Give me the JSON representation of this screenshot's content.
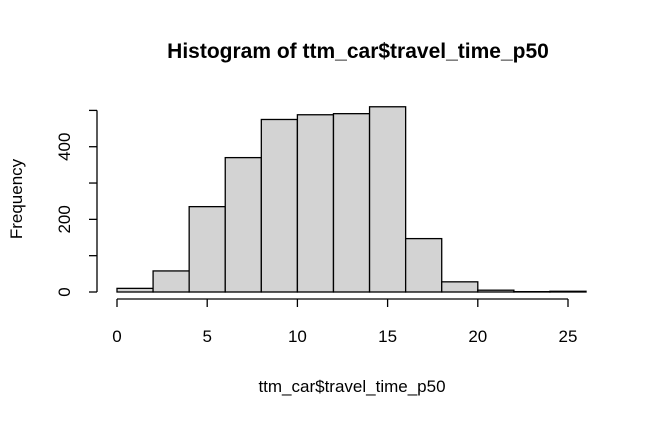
{
  "chart_data": {
    "type": "bar",
    "title": "Histogram of ttm_car$travel_time_p50",
    "xlabel": "ttm_car$travel_time_p50",
    "ylabel": "Frequency",
    "bins": [
      {
        "from": 0,
        "to": 2,
        "count": 10
      },
      {
        "from": 2,
        "to": 4,
        "count": 58
      },
      {
        "from": 4,
        "to": 6,
        "count": 235
      },
      {
        "from": 6,
        "to": 8,
        "count": 370
      },
      {
        "from": 8,
        "to": 10,
        "count": 475
      },
      {
        "from": 10,
        "to": 12,
        "count": 488
      },
      {
        "from": 12,
        "to": 14,
        "count": 491
      },
      {
        "from": 14,
        "to": 16,
        "count": 510
      },
      {
        "from": 16,
        "to": 18,
        "count": 147
      },
      {
        "from": 18,
        "to": 20,
        "count": 28
      },
      {
        "from": 20,
        "to": 22,
        "count": 5
      },
      {
        "from": 22,
        "to": 24,
        "count": 1
      },
      {
        "from": 24,
        "to": 26,
        "count": 2
      }
    ],
    "xlim": [
      0,
      26
    ],
    "ylim": [
      0,
      510
    ],
    "x_ticks": [
      0,
      5,
      10,
      15,
      20,
      25
    ],
    "y_ticks": [
      0,
      200,
      400
    ],
    "grid": false,
    "legend": "none"
  }
}
